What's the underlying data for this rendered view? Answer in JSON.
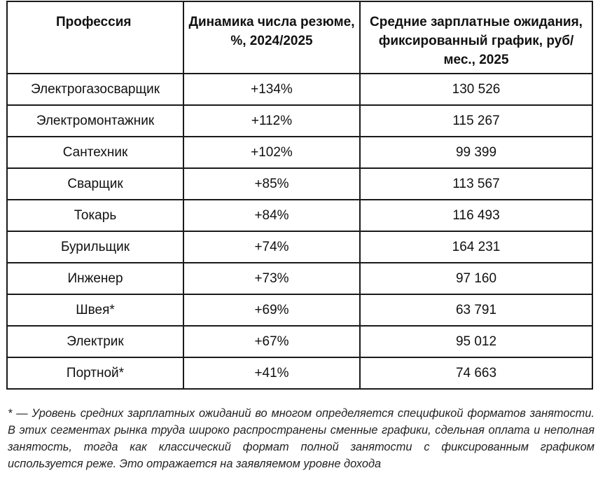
{
  "table": {
    "headers": [
      "Профессия",
      "Динамика числа резюме, %, 2024/2025",
      "Средние зарплатные ожидания, фиксированный график, руб/мес., 2025"
    ],
    "rows": [
      {
        "profession": "Электрогазосварщик",
        "dynamics": "+134%",
        "salary": "130 526"
      },
      {
        "profession": "Электромонтажник",
        "dynamics": "+112%",
        "salary": "115 267"
      },
      {
        "profession": "Сантехник",
        "dynamics": "+102%",
        "salary": "99 399"
      },
      {
        "profession": "Сварщик",
        "dynamics": "+85%",
        "salary": "113 567"
      },
      {
        "profession": "Токарь",
        "dynamics": "+84%",
        "salary": "116 493"
      },
      {
        "profession": "Бурильщик",
        "dynamics": "+74%",
        "salary": "164 231"
      },
      {
        "profession": "Инженер",
        "dynamics": "+73%",
        "salary": "97 160"
      },
      {
        "profession": "Швея*",
        "dynamics": "+69%",
        "salary": "63 791"
      },
      {
        "profession": "Электрик",
        "dynamics": "+67%",
        "salary": "95 012"
      },
      {
        "profession": "Портной*",
        "dynamics": "+41%",
        "salary": "74 663"
      }
    ]
  },
  "footnote": "* — Уровень средних зарплатных ожиданий во многом определяется спецификой форматов занятости. В этих сегментах рынка труда широко распространены сменные графики, сдельная оплата и неполная занятость, тогда как классический формат полной занятости с фиксированным графиком используется реже. Это отражается на заявляемом уровне дохода"
}
